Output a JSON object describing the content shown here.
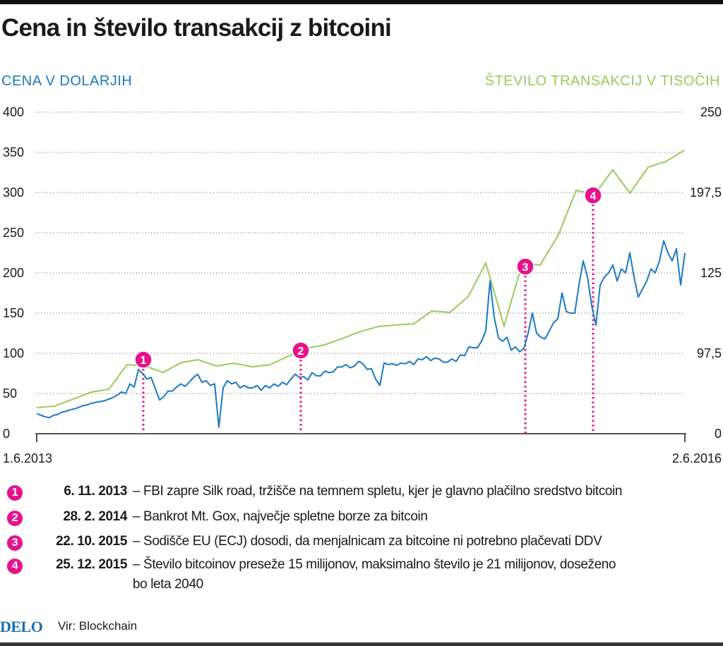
{
  "title": "Cena in število transakcij z bitcoini",
  "chart_data": {
    "type": "line",
    "title": "Cena in število transakcij z bitcoini",
    "xlabel": "",
    "x_ticks": [
      "1.6.2013",
      "2.6.2016"
    ],
    "x_range": [
      "2013-06-01",
      "2016-06-02"
    ],
    "y_left": {
      "label": "CENA V DOLARJIH",
      "ticks": [
        "0",
        "50",
        "100",
        "150",
        "200",
        "250",
        "300",
        "350",
        "400"
      ],
      "range": [
        0,
        400
      ],
      "color": "#1a7abf"
    },
    "y_right": {
      "label": "ŠTEVILO TRANSAKCIJ V TISOČIH",
      "ticks": [
        "0",
        "97,5",
        "125",
        "197,5",
        "250"
      ],
      "tick_values": [
        0,
        97.5,
        125,
        197.5,
        250
      ],
      "aligned_left_values": [
        0,
        100,
        200,
        300,
        400
      ],
      "color": "#9cc95a"
    },
    "grid": "horizontal dotted",
    "series": [
      {
        "axis": "left",
        "color": "#1a7abf",
        "frequency": "weekly",
        "start": "2013-06-01",
        "end": "2016-06-02",
        "values": [
          25,
          23,
          21,
          20,
          23,
          24,
          27,
          28,
          30,
          31,
          33,
          35,
          36,
          38,
          39,
          40,
          41,
          43,
          45,
          48,
          52,
          50,
          62,
          58,
          80,
          75,
          68,
          70,
          56,
          42,
          46,
          53,
          53,
          58,
          62,
          59,
          64,
          70,
          74,
          64,
          66,
          60,
          62,
          8,
          57,
          66,
          62,
          64,
          57,
          60,
          57,
          57,
          60,
          54,
          60,
          57,
          62,
          59,
          64,
          61,
          68,
          74,
          70,
          71,
          67,
          76,
          72,
          72,
          78,
          76,
          77,
          83,
          83,
          86,
          82,
          84,
          90,
          87,
          80,
          81,
          68,
          60,
          88,
          86,
          87,
          85,
          88,
          87,
          90,
          86,
          93,
          92,
          96,
          91,
          94,
          93,
          89,
          89,
          93,
          90,
          98,
          97,
          108,
          107,
          107,
          115,
          128,
          190,
          145,
          119,
          115,
          120,
          104,
          108,
          102,
          106,
          125,
          150,
          125,
          120,
          118,
          128,
          138,
          143,
          175,
          152,
          150,
          150,
          185,
          215,
          195,
          160,
          135,
          185,
          195,
          200,
          210,
          190,
          205,
          200,
          225,
          195,
          170,
          180,
          190,
          205,
          200,
          215,
          240,
          225,
          215,
          230,
          185,
          225
        ]
      },
      {
        "axis": "right",
        "color": "#9cc95a",
        "frequency": "monthly",
        "x": [
          "2013-06",
          "2013-07",
          "2013-08",
          "2013-09",
          "2013-10",
          "2013-11",
          "2013-12",
          "2014-01",
          "2014-02",
          "2014-03",
          "2014-04",
          "2014-05",
          "2014-06",
          "2014-07",
          "2014-08",
          "2014-09",
          "2014-10",
          "2014-11",
          "2014-12",
          "2015-01",
          "2015-02",
          "2015-03",
          "2015-04",
          "2015-05",
          "2015-06",
          "2015-07",
          "2015-08",
          "2015-09",
          "2015-10",
          "2015-11",
          "2015-12",
          "2016-01",
          "2016-02",
          "2016-03",
          "2016-04",
          "2016-05",
          "2016-06"
        ],
        "values": [
          31.7,
          33.4,
          41.9,
          50.5,
          53.9,
          83.8,
          82.1,
          74.4,
          86.4,
          89.8,
          82.1,
          85.5,
          81.2,
          83.8,
          94.1,
          99.2,
          100.4,
          102.6,
          105.0,
          106.7,
          107.2,
          107.6,
          112.0,
          111.5,
          116.8,
          133.9,
          106.9,
          133.9,
          132.0,
          159.4,
          198.9,
          195.6,
          212.3,
          196.9,
          214.1,
          217.7,
          225.1
        ]
      }
    ],
    "events": [
      {
        "number": "1",
        "date": "6. 11. 2013",
        "text": "– FBI zapre Silk road, tržišče na temnem spletu, kjer je glavno plačilno sredstvo bitcoin"
      },
      {
        "number": "2",
        "date": "28. 2. 2014",
        "text": "– Bankrot Mt. Gox, največje spletne borze za bitcoin"
      },
      {
        "number": "3",
        "date": "22. 10. 2015",
        "text": "– Sodišče EU (ECJ) dosodi, da menjalnicam za bitcoine ni potrebno plačevati DDV"
      },
      {
        "number": "4",
        "date": "25. 12. 2015",
        "text": "– Število bitcoinov preseže 15 milijonov, maksimalno število je 21 milijonov, doseženo",
        "text2": "bo leta 2040"
      }
    ],
    "event_color": "#e5128c"
  },
  "footer": {
    "logo": "DELO",
    "source": "Vir: Blockchain"
  }
}
